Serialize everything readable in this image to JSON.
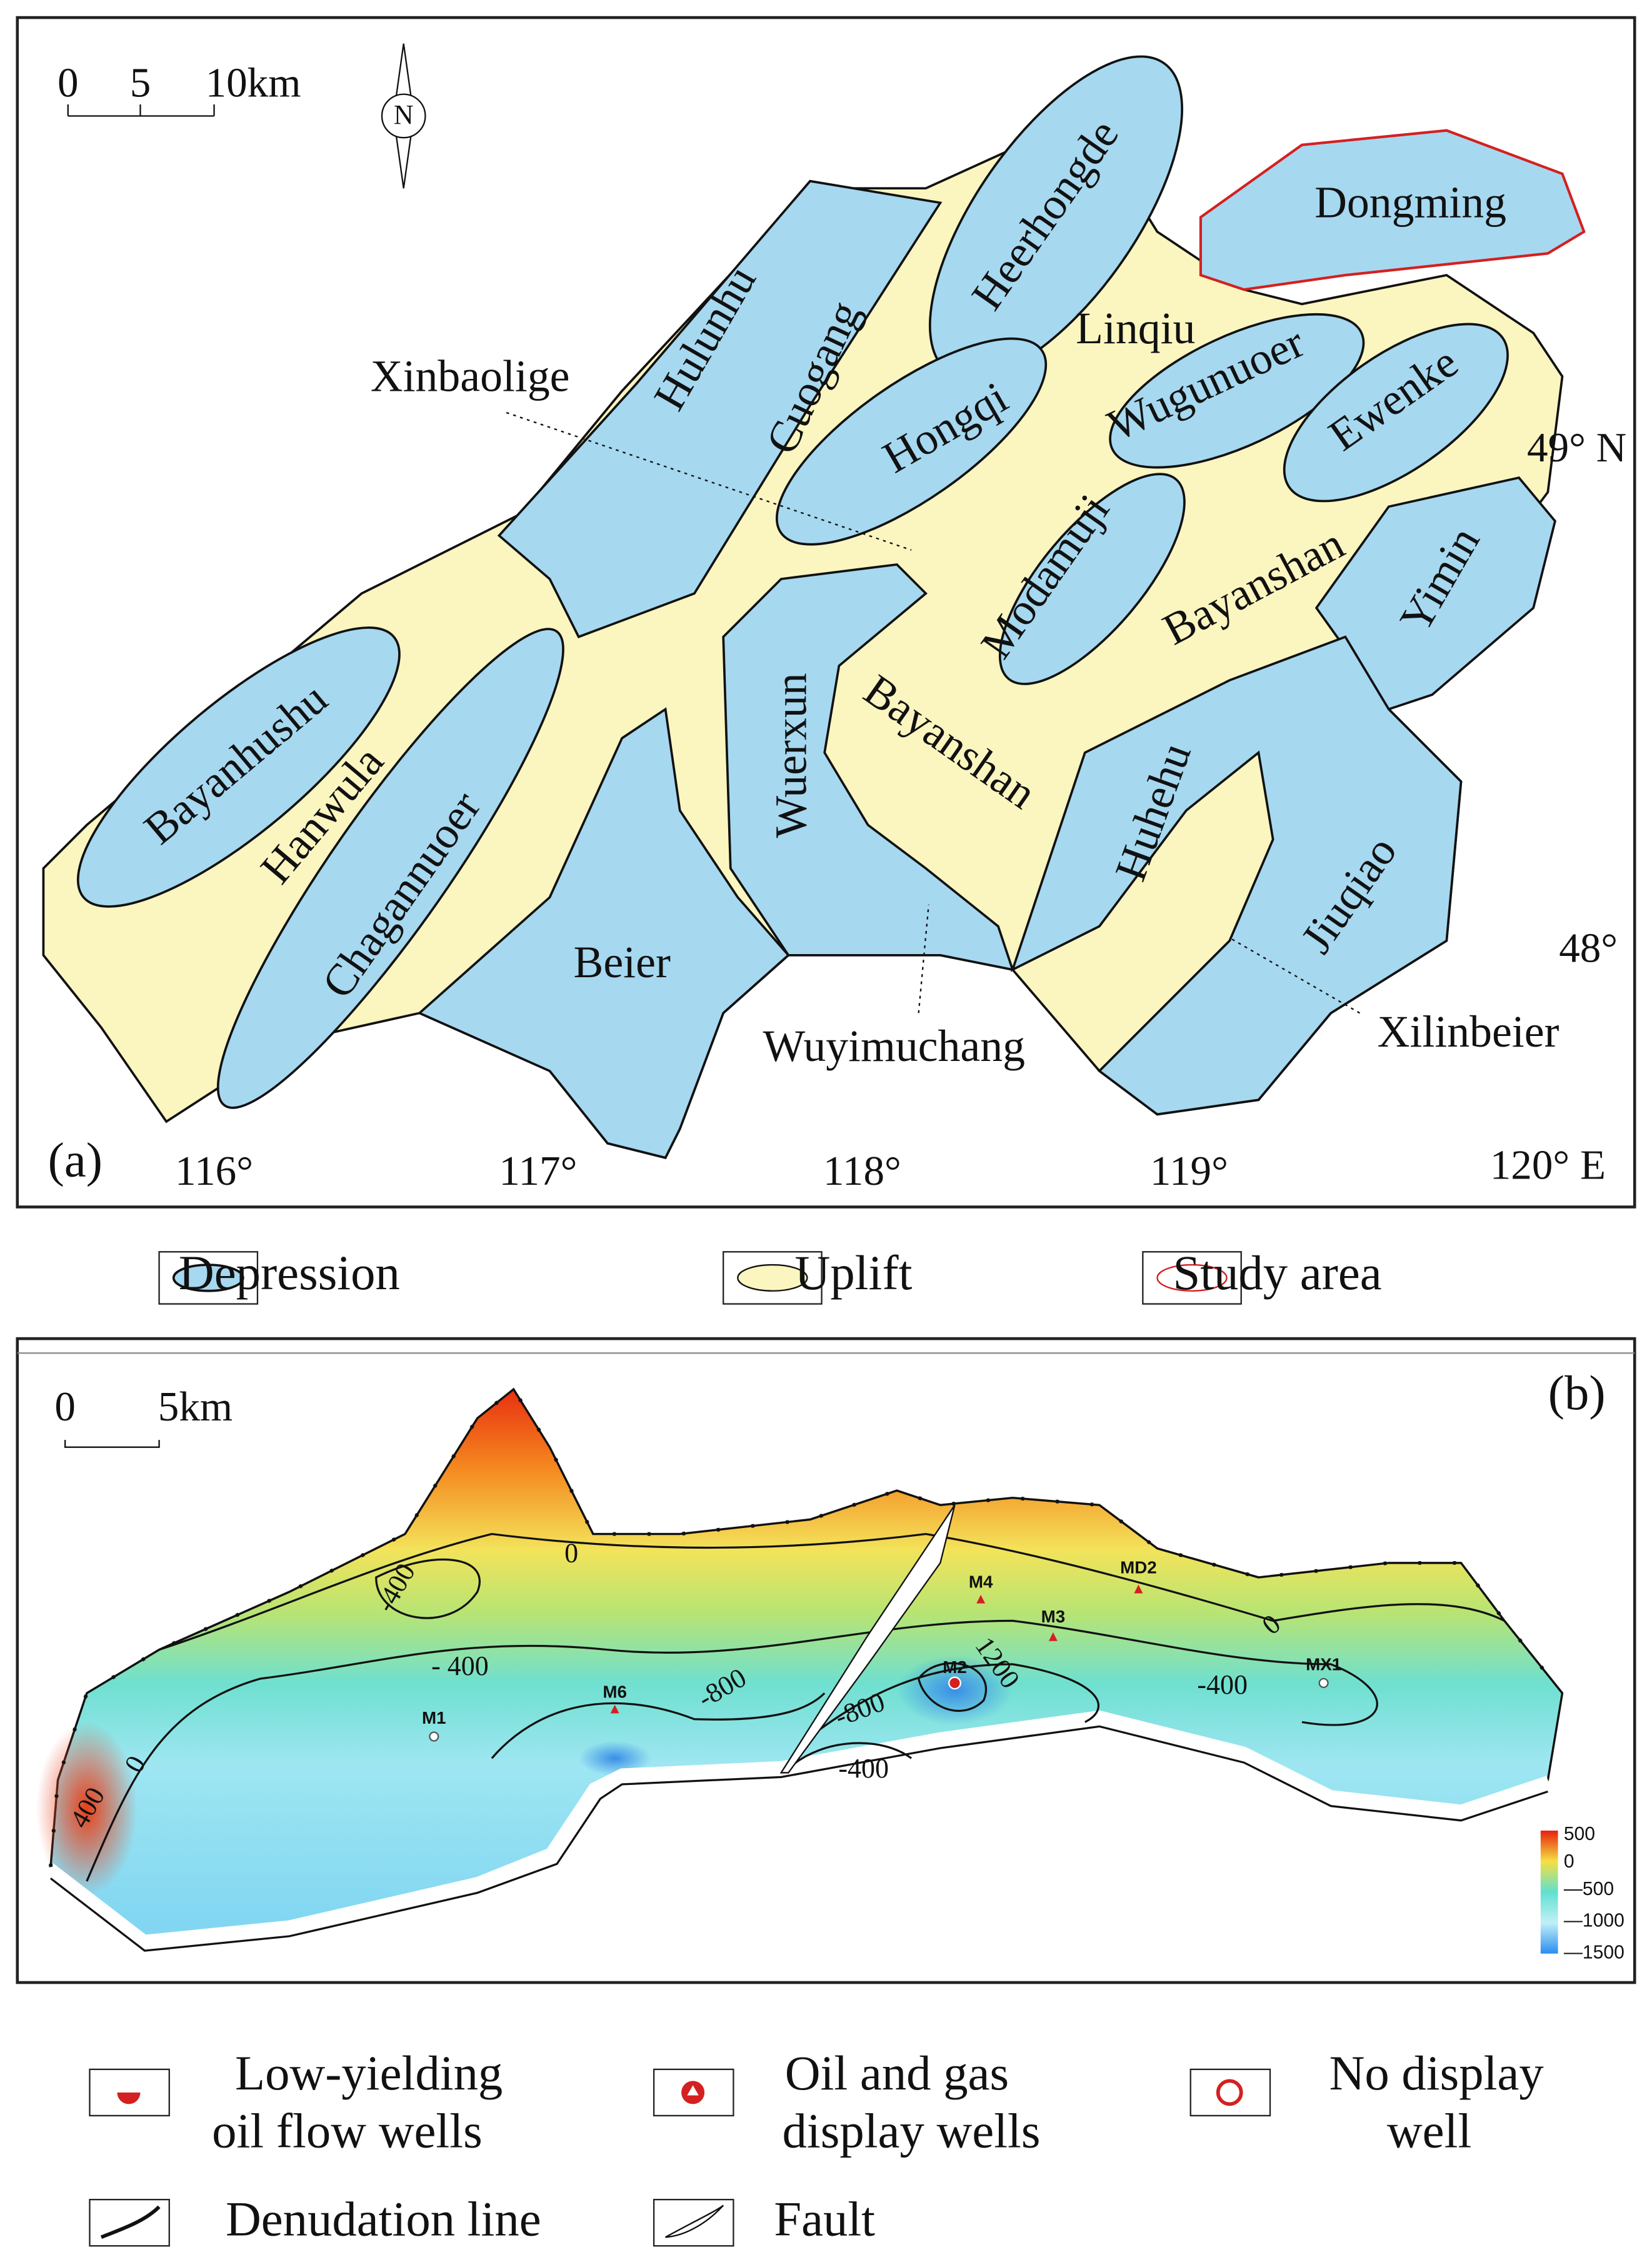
{
  "panel_a": {
    "label": "(a)",
    "scale": [
      "0",
      "5",
      "10km"
    ],
    "north": "N",
    "regions": [
      "Hulunhu",
      "Cuogang",
      "Heerhongde",
      "Dongming",
      "Linqiu",
      "Hongqi",
      "Wugunuoer",
      "Ewenke",
      "Modamuji",
      "Bayanshan",
      "Yimin",
      "Bayanhushu",
      "Hanwula",
      "Chagannuoer",
      "Wuerxun",
      "Bayanshan",
      "Huhehu",
      "Jiuqiao",
      "Beier"
    ],
    "callouts": [
      "Xinbaolige",
      "Wuyimuchang",
      "Xilinbeier"
    ],
    "lat_labels": [
      "49° N",
      "48°"
    ],
    "lon_labels": [
      "116°",
      "117°",
      "118°",
      "119°",
      "120° E"
    ]
  },
  "legend_a": [
    "Depression",
    "Uplift",
    "Study area"
  ],
  "panel_b": {
    "label": "(b)",
    "scale": [
      "0",
      "5km"
    ],
    "contours": [
      "0",
      "-400",
      "- 400",
      "-800",
      "-800",
      "-400",
      "1200",
      "-400",
      "0",
      "0",
      "400"
    ],
    "wells": [
      "M1",
      "M6",
      "M2",
      "M3",
      "M4",
      "MD2",
      "MX1"
    ],
    "colorbar": [
      "500",
      "0",
      "—500",
      "—1000",
      "—1500"
    ]
  },
  "legend_b": [
    [
      "Low-yielding",
      "oil flow wells"
    ],
    [
      "Oil and gas",
      "display wells"
    ],
    [
      "No display",
      "well"
    ],
    [
      "Denudation line"
    ],
    [
      "Fault"
    ]
  ]
}
